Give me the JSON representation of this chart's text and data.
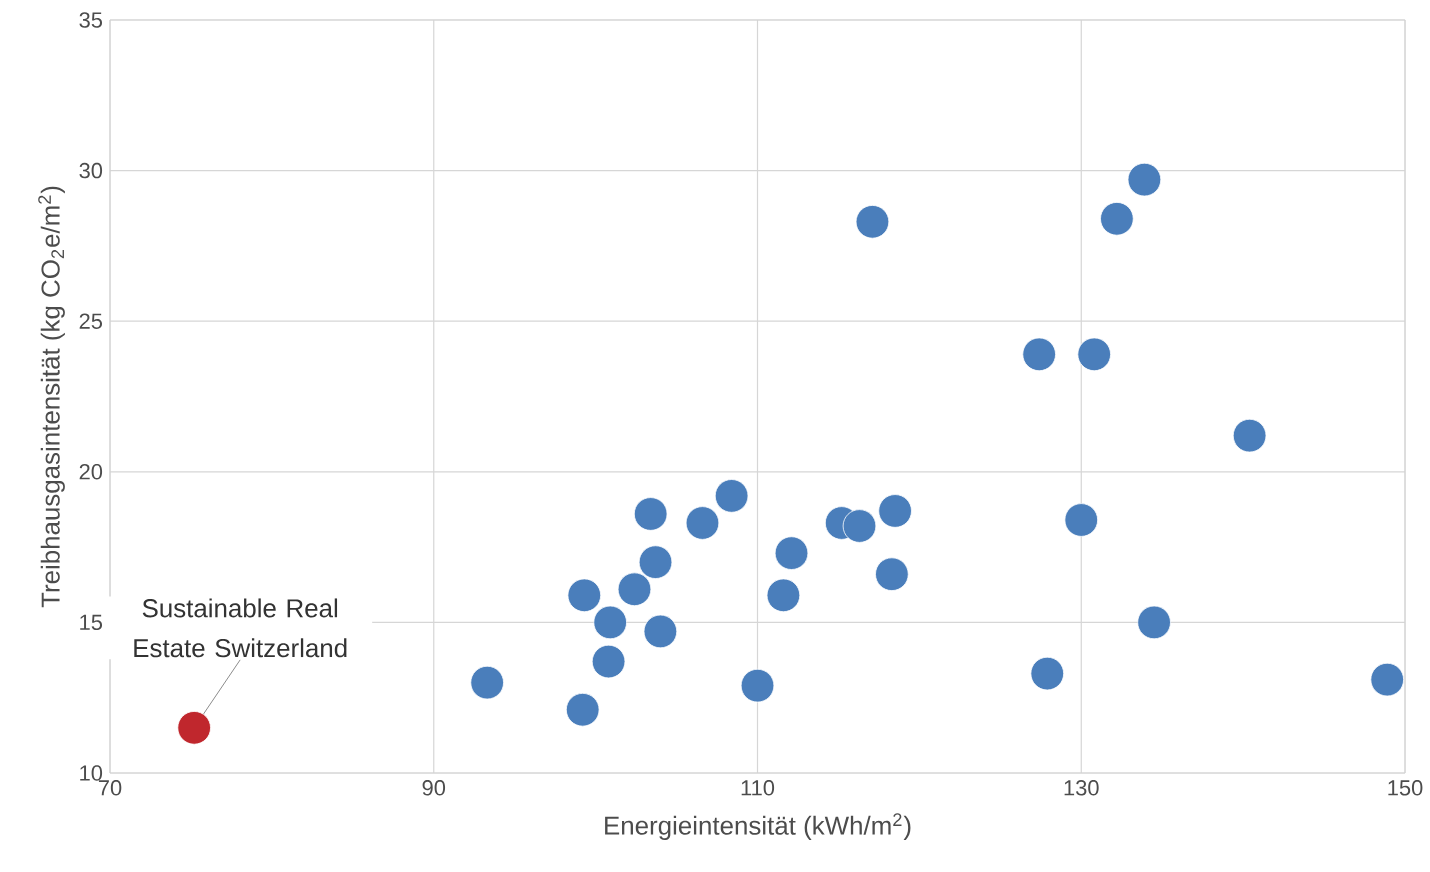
{
  "chart_data": {
    "type": "scatter",
    "xlabel": "Energieintensität (kWh/m$^{2}$)",
    "ylabel": "Treibhausgasintensität (kg CO$_{2}$e/m$^{2}$)",
    "xlim": [
      70,
      150
    ],
    "xticks": [
      70,
      90,
      110,
      130,
      150
    ],
    "ylim": [
      10,
      35
    ],
    "yticks": [
      10,
      15,
      20,
      25,
      30,
      35
    ],
    "grid": true,
    "marker": "circle",
    "series": [
      {
        "color": "#4a7ebb",
        "x": [
          93.3,
          99.2,
          99.3,
          100.8,
          100.9,
          102.4,
          103.4,
          103.7,
          104.0,
          106.6,
          108.4,
          110.0,
          111.6,
          112.1,
          115.2,
          116.3,
          117.1,
          118.3,
          118.5,
          127.4,
          127.9,
          130.0,
          130.8,
          132.2,
          133.9,
          134.5,
          140.4,
          148.9
        ],
        "values": [
          13.0,
          12.1,
          15.9,
          13.7,
          15.0,
          16.1,
          18.6,
          17.0,
          14.7,
          18.3,
          19.2,
          12.9,
          15.9,
          17.3,
          18.3,
          18.2,
          28.3,
          16.6,
          18.7,
          23.9,
          13.3,
          18.4,
          23.9,
          28.4,
          29.7,
          15.0,
          21.2,
          13.1
        ]
      },
      {
        "color": "#c0272d",
        "x": [
          75.2
        ],
        "values": [
          11.5
        ]
      }
    ],
    "annotations": [
      {
        "text": "Sustainable Real Estate Switzerland",
        "x": 75.2,
        "y": 11.5
      }
    ]
  }
}
